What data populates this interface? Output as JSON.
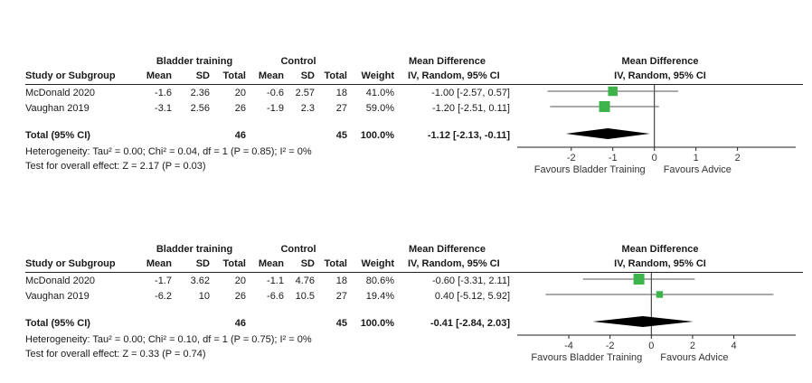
{
  "chart_data": [
    {
      "type": "forest",
      "headers": {
        "group1": "Bladder training",
        "group2": "Control",
        "study": "Study or Subgroup",
        "mean": "Mean",
        "sd": "SD",
        "total": "Total",
        "weight": "Weight",
        "md_title": "Mean Difference",
        "md_method": "IV, Random, 95% CI",
        "plot_title": "Mean Difference",
        "plot_method": "IV, Random, 95% CI"
      },
      "studies": [
        {
          "name": "McDonald 2020",
          "mean1": "-1.6",
          "sd1": "2.36",
          "n1": "20",
          "mean2": "-0.6",
          "sd2": "2.57",
          "n2": "18",
          "weight": "41.0%",
          "ci_text": "-1.00 [-2.57, 0.57]",
          "md": -1.0,
          "lo": -2.57,
          "hi": 0.57,
          "w": 41.0
        },
        {
          "name": "Vaughan 2019",
          "mean1": "-3.1",
          "sd1": "2.56",
          "n1": "26",
          "mean2": "-1.9",
          "sd2": "2.3",
          "n2": "27",
          "weight": "59.0%",
          "ci_text": "-1.20 [-2.51, 0.11]",
          "md": -1.2,
          "lo": -2.51,
          "hi": 0.11,
          "w": 59.0
        }
      ],
      "total": {
        "label": "Total (95% CI)",
        "n1": "46",
        "n2": "45",
        "weight": "100.0%",
        "ci_text": "-1.12 [-2.13, -0.11]",
        "md": -1.12,
        "lo": -2.13,
        "hi": -0.11
      },
      "heterogeneity": "Heterogeneity: Tau² = 0.00; Chi² = 0.04, df = 1 (P = 0.85); I² = 0%",
      "overall": "Test for overall effect: Z = 2.17 (P = 0.03)",
      "axis": {
        "min": -3.3,
        "max": 3.4,
        "ticks": [
          "-2",
          "-1",
          "0",
          "1",
          "2"
        ],
        "tick_values": [
          -2,
          -1,
          0,
          1,
          2
        ]
      },
      "favours_left": "Favours Bladder Training",
      "favours_right": "Favours Advice"
    },
    {
      "type": "forest",
      "headers": {
        "group1": "Bladder training",
        "group2": "Control",
        "study": "Study or Subgroup",
        "mean": "Mean",
        "sd": "SD",
        "total": "Total",
        "weight": "Weight",
        "md_title": "Mean Difference",
        "md_method": "IV, Random, 95% CI",
        "plot_title": "Mean Difference",
        "plot_method": "IV, Random, 95% CI"
      },
      "studies": [
        {
          "name": "McDonald 2020",
          "mean1": "-1.7",
          "sd1": "3.62",
          "n1": "20",
          "mean2": "-1.1",
          "sd2": "4.76",
          "n2": "18",
          "weight": "80.6%",
          "ci_text": "-0.60 [-3.31, 2.11]",
          "md": -0.6,
          "lo": -3.31,
          "hi": 2.11,
          "w": 80.6
        },
        {
          "name": "Vaughan 2019",
          "mean1": "-6.2",
          "sd1": "10",
          "n1": "26",
          "mean2": "-6.6",
          "sd2": "10.5",
          "n2": "27",
          "weight": "19.4%",
          "ci_text": "0.40 [-5.12, 5.92]",
          "md": 0.4,
          "lo": -5.12,
          "hi": 5.92,
          "w": 19.4
        }
      ],
      "total": {
        "label": "Total (95% CI)",
        "n1": "46",
        "n2": "45",
        "weight": "100.0%",
        "ci_text": "-0.41 [-2.84, 2.03]",
        "md": -0.41,
        "lo": -2.84,
        "hi": 2.03
      },
      "heterogeneity": "Heterogeneity: Tau² = 0.00; Chi² = 0.10, df = 1 (P = 0.75); I² = 0%",
      "overall": "Test for overall effect: Z = 0.33 (P = 0.74)",
      "axis": {
        "min": -6.5,
        "max": 7.0,
        "ticks": [
          "-4",
          "-2",
          "0",
          "2",
          "4"
        ],
        "tick_values": [
          -4,
          -2,
          0,
          2,
          4
        ]
      },
      "favours_left": "Favours Bladder Training",
      "favours_right": "Favours Advice"
    }
  ],
  "colors": {
    "marker": "#3cb44b",
    "line": "#222222",
    "diamond": "#000000"
  }
}
